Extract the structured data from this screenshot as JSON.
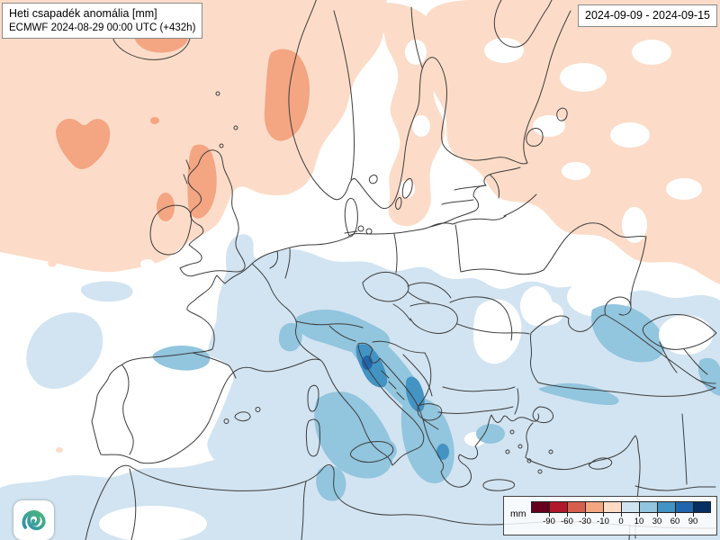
{
  "header": {
    "title": "Heti csapadék anomália [mm]",
    "model_run": "ECMWF 2024-08-29 00:00 UTC (+432h)"
  },
  "valid_period": "2024-09-09 - 2024-09-15",
  "legend": {
    "unit": "mm",
    "boundary_labels": [
      "-90",
      "-60",
      "-30",
      "-10",
      "0",
      "10",
      "30",
      "60",
      "90"
    ],
    "colors": [
      "#67001f",
      "#b2182b",
      "#d6604d",
      "#f4a582",
      "#fddbc7",
      "#d1e5f0",
      "#92c5de",
      "#4393c3",
      "#2166ac",
      "#053061"
    ]
  },
  "map": {
    "palette": {
      "negative_light": "#fcdcc8",
      "negative_mid": "#f4a582",
      "positive_light": "#d2e4f1",
      "positive_mid": "#92c5de",
      "positive_strong": "#4393c3",
      "positive_max": "#2166ac",
      "coastline": "#3d3d3d"
    }
  },
  "logo": {
    "color_teal": "#2f8fae",
    "color_green": "#4cb878"
  }
}
